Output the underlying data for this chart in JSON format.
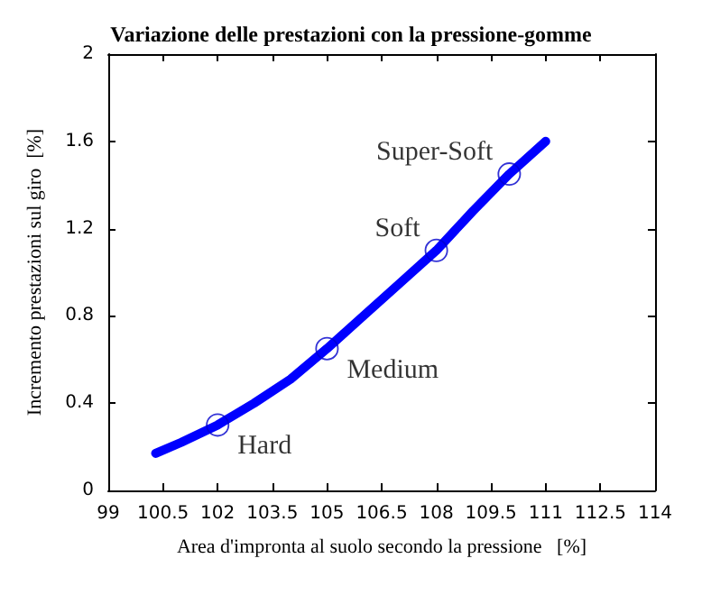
{
  "chart_data": {
    "type": "line",
    "title": "Variazione delle prestazioni con la pressione-gomme",
    "xlabel": "Area d'impronta al suolo secondo la pressione   [%]",
    "ylabel": "Incremento prestazioni sul giro  [%]",
    "xlim": [
      99,
      114
    ],
    "xticks": [
      99,
      100.5,
      102,
      103.5,
      105,
      106.5,
      108,
      109.5,
      111,
      112.5,
      114
    ],
    "ylim": [
      0,
      2
    ],
    "yticks": [
      0,
      0.4,
      0.8,
      1.2,
      1.6,
      2
    ],
    "grid": false,
    "series": [
      {
        "type": "line",
        "color": "#0000ff",
        "marker": "none",
        "line_style": "solid",
        "x": [
          100.3,
          101,
          102,
          103,
          104,
          105,
          106,
          107,
          108,
          109,
          110,
          111
        ],
        "values": [
          0.17,
          0.22,
          0.3,
          0.4,
          0.51,
          0.65,
          0.8,
          0.95,
          1.1,
          1.28,
          1.45,
          1.6
        ]
      },
      {
        "type": "scatter",
        "color": "#0000cc",
        "marker": "circle",
        "x": [
          102,
          105,
          108,
          110
        ],
        "values": [
          0.3,
          0.65,
          1.1,
          1.45
        ]
      }
    ],
    "annotations": [
      {
        "text": "Hard",
        "x": 102,
        "y": 0.3
      },
      {
        "text": "Medium",
        "x": 105,
        "y": 0.65
      },
      {
        "text": "Soft",
        "x": 108,
        "y": 1.1
      },
      {
        "text": "Super-Soft",
        "x": 110,
        "y": 1.45
      }
    ]
  }
}
